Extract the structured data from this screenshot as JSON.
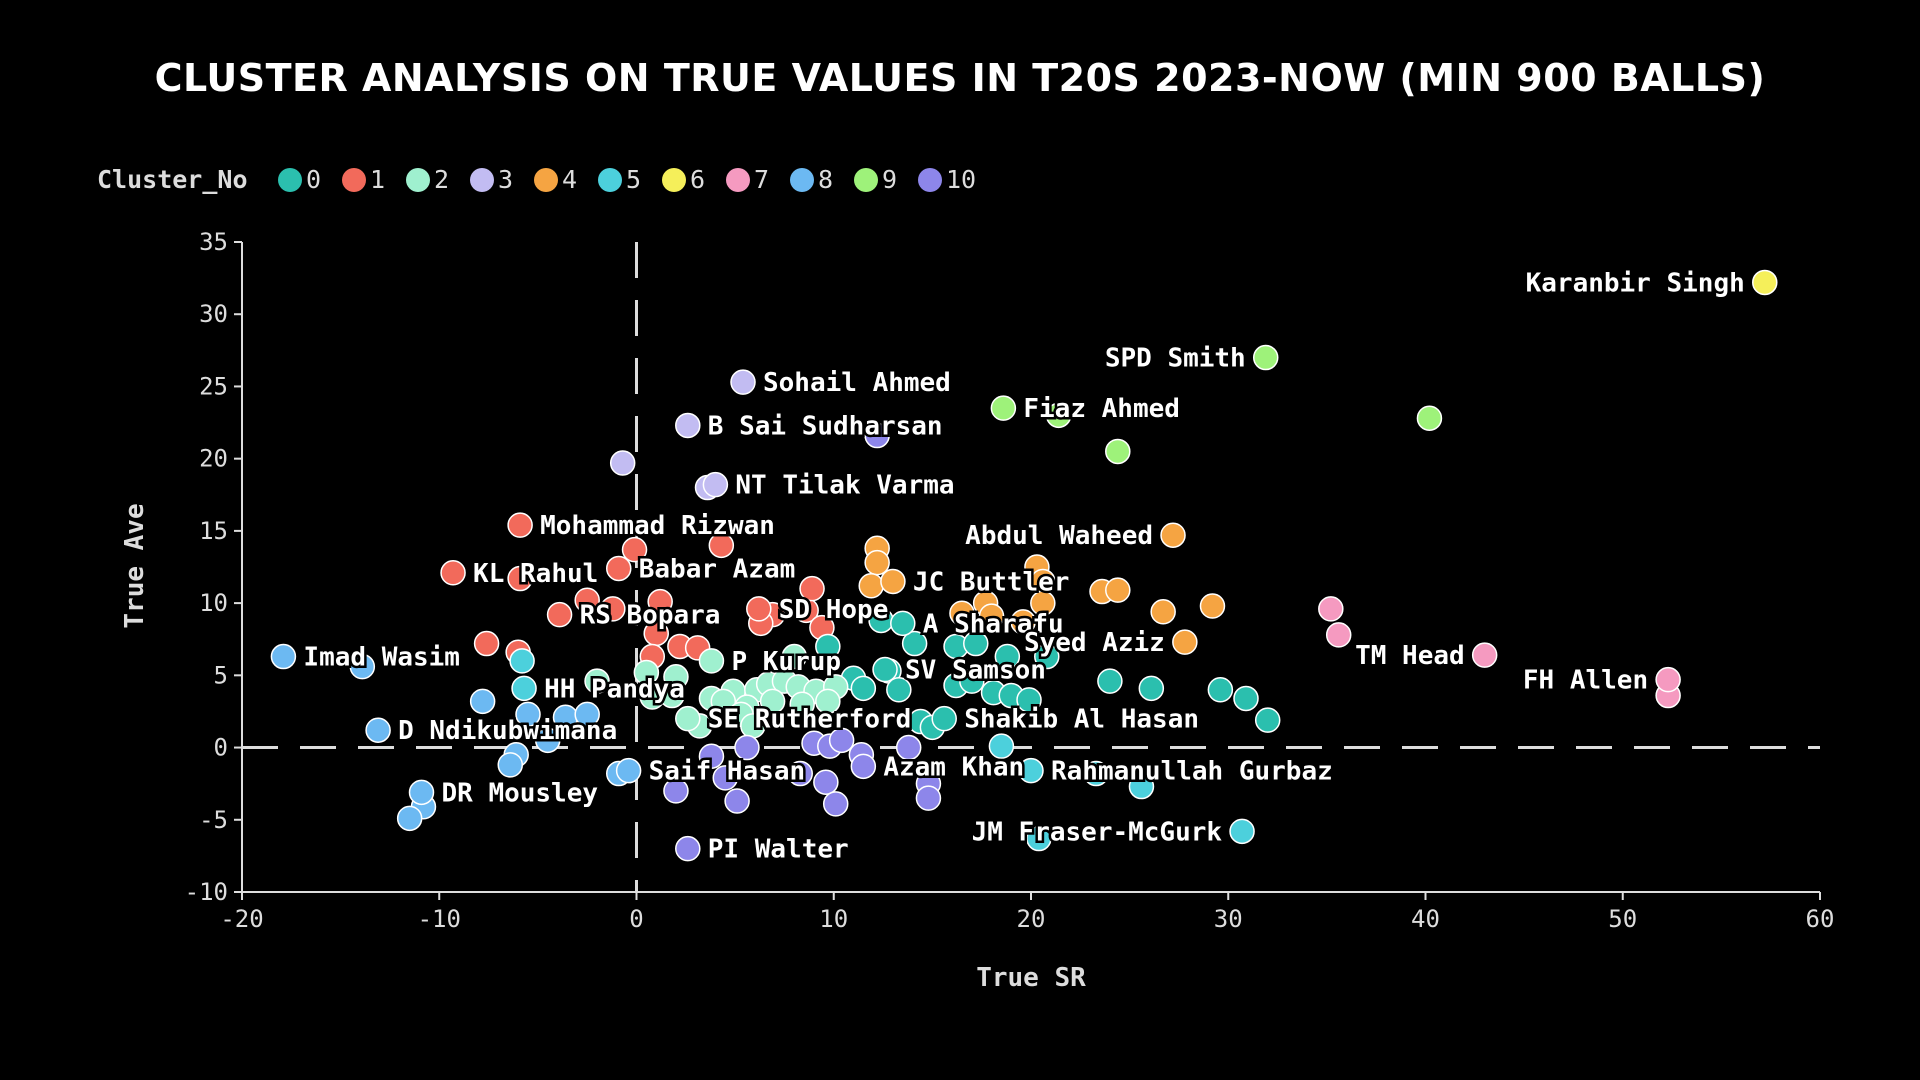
{
  "chart_data": {
    "type": "scatter",
    "title": "CLUSTER ANALYSIS ON TRUE VALUES IN T20S 2023-NOW (MIN 900 BALLS)",
    "xlabel": "True SR",
    "ylabel": "True Ave",
    "xlim": [
      -20,
      60
    ],
    "ylim": [
      -10,
      35
    ],
    "xticks": [
      -20,
      -10,
      0,
      10,
      20,
      30,
      40,
      50,
      60
    ],
    "yticks": [
      -10,
      -5,
      0,
      5,
      10,
      15,
      20,
      25,
      30,
      35
    ],
    "reference_lines": {
      "x": 0,
      "y": 0,
      "style": "dashed"
    },
    "legend": {
      "title": "Cluster_No",
      "placement": "top-left",
      "entries": [
        {
          "label": "0",
          "color": "#2bbfae"
        },
        {
          "label": "1",
          "color": "#f26a5b"
        },
        {
          "label": "2",
          "color": "#9ff0cf"
        },
        {
          "label": "3",
          "color": "#c2bcf2"
        },
        {
          "label": "4",
          "color": "#f5a442"
        },
        {
          "label": "5",
          "color": "#4cd0dc"
        },
        {
          "label": "6",
          "color": "#f5ef5a"
        },
        {
          "label": "7",
          "color": "#f59ac0"
        },
        {
          "label": "8",
          "color": "#6cb9f2"
        },
        {
          "label": "9",
          "color": "#9ef27a"
        },
        {
          "label": "10",
          "color": "#8d86ea"
        }
      ]
    },
    "labeled_points": [
      {
        "name": "Karanbir Singh",
        "x": 57.2,
        "y": 32.2,
        "cluster": "6",
        "label_side": "left"
      },
      {
        "name": "SPD Smith",
        "x": 31.9,
        "y": 27.0,
        "cluster": "9",
        "label_side": "left"
      },
      {
        "name": "Fiaz Ahmed",
        "x": 18.6,
        "y": 23.5,
        "cluster": "9",
        "label_side": "right"
      },
      {
        "name": "Sohail Ahmed",
        "x": 5.4,
        "y": 25.3,
        "cluster": "3",
        "label_side": "right"
      },
      {
        "name": "B Sai Sudharsan",
        "x": 2.6,
        "y": 22.3,
        "cluster": "3",
        "label_side": "right"
      },
      {
        "name": "NT Tilak Varma",
        "x": 4.0,
        "y": 18.2,
        "cluster": "3",
        "label_side": "right"
      },
      {
        "name": "Mohammad Rizwan",
        "x": -5.9,
        "y": 15.4,
        "cluster": "1",
        "label_side": "right"
      },
      {
        "name": "Abdul Waheed",
        "x": 27.2,
        "y": 14.7,
        "cluster": "4",
        "label_side": "left"
      },
      {
        "name": "KL Rahul",
        "x": -9.3,
        "y": 12.1,
        "cluster": "1",
        "label_side": "right"
      },
      {
        "name": "Babar Azam",
        "x": -0.9,
        "y": 12.4,
        "cluster": "1",
        "label_side": "right"
      },
      {
        "name": "JC Buttler",
        "x": 13.0,
        "y": 11.5,
        "cluster": "4",
        "label_side": "right"
      },
      {
        "name": "RS Bopara",
        "x": -3.9,
        "y": 9.2,
        "cluster": "1",
        "label_side": "right"
      },
      {
        "name": "SD Hope",
        "x": 6.2,
        "y": 9.6,
        "cluster": "1",
        "label_side": "right"
      },
      {
        "name": "A Sharafu",
        "x": 13.5,
        "y": 8.6,
        "cluster": "0",
        "label_side": "right"
      },
      {
        "name": "Syed Aziz",
        "x": 27.8,
        "y": 7.3,
        "cluster": "4",
        "label_side": "left"
      },
      {
        "name": "TM Head",
        "x": 43.0,
        "y": 6.4,
        "cluster": "7",
        "label_side": "left"
      },
      {
        "name": "FH Allen",
        "x": 52.3,
        "y": 4.7,
        "cluster": "7",
        "label_side": "left"
      },
      {
        "name": "Imad Wasim",
        "x": -17.9,
        "y": 6.3,
        "cluster": "8",
        "label_side": "right"
      },
      {
        "name": "P Kurup",
        "x": 3.8,
        "y": 6.0,
        "cluster": "2",
        "label_side": "right"
      },
      {
        "name": "SV Samson",
        "x": 12.6,
        "y": 5.4,
        "cluster": "0",
        "label_side": "right"
      },
      {
        "name": "HH Pandya",
        "x": -5.7,
        "y": 4.1,
        "cluster": "5",
        "label_side": "right"
      },
      {
        "name": "SE Rutherford",
        "x": 2.6,
        "y": 2.0,
        "cluster": "2",
        "label_side": "right"
      },
      {
        "name": "Shakib Al Hasan",
        "x": 15.6,
        "y": 2.0,
        "cluster": "0",
        "label_side": "right"
      },
      {
        "name": "D Ndikubwimana",
        "x": -13.1,
        "y": 1.2,
        "cluster": "8",
        "label_side": "right"
      },
      {
        "name": "Saif Hasan",
        "x": -0.4,
        "y": -1.6,
        "cluster": "8",
        "label_side": "right"
      },
      {
        "name": "Azam Khan",
        "x": 11.5,
        "y": -1.3,
        "cluster": "10",
        "label_side": "right"
      },
      {
        "name": "Rahmanullah Gurbaz",
        "x": 20.0,
        "y": -1.6,
        "cluster": "5",
        "label_side": "right"
      },
      {
        "name": "DR Mousley",
        "x": -10.9,
        "y": -3.1,
        "cluster": "8",
        "label_side": "right"
      },
      {
        "name": "JM Fraser-McGurk",
        "x": 30.7,
        "y": -5.8,
        "cluster": "5",
        "label_side": "left"
      },
      {
        "name": "PI Walter",
        "x": 2.6,
        "y": -7.0,
        "cluster": "10",
        "label_side": "right"
      }
    ],
    "unlabeled_points": [
      {
        "x": 40.2,
        "y": 22.8,
        "cluster": "9"
      },
      {
        "x": 21.4,
        "y": 23.0,
        "cluster": "9"
      },
      {
        "x": 24.4,
        "y": 20.5,
        "cluster": "9"
      },
      {
        "x": 12.2,
        "y": 21.6,
        "cluster": "10"
      },
      {
        "x": -0.7,
        "y": 19.7,
        "cluster": "3"
      },
      {
        "x": 3.6,
        "y": 18.0,
        "cluster": "3"
      },
      {
        "x": -0.1,
        "y": 13.7,
        "cluster": "1"
      },
      {
        "x": 4.3,
        "y": 14.0,
        "cluster": "1"
      },
      {
        "x": -5.9,
        "y": 11.7,
        "cluster": "1"
      },
      {
        "x": -2.5,
        "y": 10.2,
        "cluster": "1"
      },
      {
        "x": -1.2,
        "y": 9.6,
        "cluster": "1"
      },
      {
        "x": 1.2,
        "y": 10.1,
        "cluster": "1"
      },
      {
        "x": 6.9,
        "y": 9.2,
        "cluster": "1"
      },
      {
        "x": 8.6,
        "y": 9.5,
        "cluster": "1"
      },
      {
        "x": 8.9,
        "y": 11.0,
        "cluster": "1"
      },
      {
        "x": 9.4,
        "y": 8.3,
        "cluster": "1"
      },
      {
        "x": 6.3,
        "y": 8.6,
        "cluster": "1"
      },
      {
        "x": 1.0,
        "y": 7.9,
        "cluster": "1"
      },
      {
        "x": 2.2,
        "y": 7.0,
        "cluster": "1"
      },
      {
        "x": 3.1,
        "y": 6.9,
        "cluster": "1"
      },
      {
        "x": 0.8,
        "y": 6.3,
        "cluster": "1"
      },
      {
        "x": -7.6,
        "y": 7.2,
        "cluster": "1"
      },
      {
        "x": -6.0,
        "y": 6.6,
        "cluster": "1"
      },
      {
        "x": 12.2,
        "y": 13.8,
        "cluster": "4"
      },
      {
        "x": 12.2,
        "y": 12.8,
        "cluster": "4"
      },
      {
        "x": 11.9,
        "y": 11.2,
        "cluster": "4"
      },
      {
        "x": 20.3,
        "y": 12.5,
        "cluster": "4"
      },
      {
        "x": 20.6,
        "y": 11.5,
        "cluster": "4"
      },
      {
        "x": 23.6,
        "y": 10.8,
        "cluster": "4"
      },
      {
        "x": 24.4,
        "y": 10.9,
        "cluster": "4"
      },
      {
        "x": 17.7,
        "y": 10.0,
        "cluster": "4"
      },
      {
        "x": 20.6,
        "y": 10.0,
        "cluster": "4"
      },
      {
        "x": 16.5,
        "y": 9.3,
        "cluster": "4"
      },
      {
        "x": 18.0,
        "y": 9.1,
        "cluster": "4"
      },
      {
        "x": 19.6,
        "y": 8.7,
        "cluster": "4"
      },
      {
        "x": 26.7,
        "y": 9.4,
        "cluster": "4"
      },
      {
        "x": 29.2,
        "y": 9.8,
        "cluster": "4"
      },
      {
        "x": 35.2,
        "y": 9.6,
        "cluster": "7"
      },
      {
        "x": 35.6,
        "y": 7.8,
        "cluster": "7"
      },
      {
        "x": 52.3,
        "y": 3.6,
        "cluster": "7"
      },
      {
        "x": 12.4,
        "y": 8.8,
        "cluster": "0"
      },
      {
        "x": 9.7,
        "y": 7.0,
        "cluster": "0"
      },
      {
        "x": 14.1,
        "y": 7.2,
        "cluster": "0"
      },
      {
        "x": 16.2,
        "y": 7.0,
        "cluster": "0"
      },
      {
        "x": 17.2,
        "y": 7.2,
        "cluster": "0"
      },
      {
        "x": 18.8,
        "y": 6.3,
        "cluster": "0"
      },
      {
        "x": 20.8,
        "y": 6.3,
        "cluster": "0"
      },
      {
        "x": 12.8,
        "y": 5.3,
        "cluster": "0"
      },
      {
        "x": 11.0,
        "y": 4.8,
        "cluster": "0"
      },
      {
        "x": 11.5,
        "y": 4.1,
        "cluster": "0"
      },
      {
        "x": 13.3,
        "y": 4.0,
        "cluster": "0"
      },
      {
        "x": 16.2,
        "y": 4.3,
        "cluster": "0"
      },
      {
        "x": 17.0,
        "y": 4.6,
        "cluster": "0"
      },
      {
        "x": 18.1,
        "y": 3.8,
        "cluster": "0"
      },
      {
        "x": 19.0,
        "y": 3.6,
        "cluster": "0"
      },
      {
        "x": 19.9,
        "y": 3.3,
        "cluster": "0"
      },
      {
        "x": 24.0,
        "y": 4.6,
        "cluster": "0"
      },
      {
        "x": 26.1,
        "y": 4.1,
        "cluster": "0"
      },
      {
        "x": 29.6,
        "y": 4.0,
        "cluster": "0"
      },
      {
        "x": 30.9,
        "y": 3.4,
        "cluster": "0"
      },
      {
        "x": 32.0,
        "y": 1.9,
        "cluster": "0"
      },
      {
        "x": 14.4,
        "y": 1.8,
        "cluster": "0"
      },
      {
        "x": 15.0,
        "y": 1.4,
        "cluster": "0"
      },
      {
        "x": 0.5,
        "y": 5.2,
        "cluster": "2"
      },
      {
        "x": 2.0,
        "y": 4.9,
        "cluster": "2"
      },
      {
        "x": -2.0,
        "y": 4.6,
        "cluster": "2"
      },
      {
        "x": 0.8,
        "y": 3.5,
        "cluster": "2"
      },
      {
        "x": 1.8,
        "y": 3.6,
        "cluster": "2"
      },
      {
        "x": 3.8,
        "y": 3.4,
        "cluster": "2"
      },
      {
        "x": 4.9,
        "y": 3.9,
        "cluster": "2"
      },
      {
        "x": 6.1,
        "y": 4.0,
        "cluster": "2"
      },
      {
        "x": 6.7,
        "y": 4.4,
        "cluster": "2"
      },
      {
        "x": 7.5,
        "y": 4.6,
        "cluster": "2"
      },
      {
        "x": 8.2,
        "y": 4.2,
        "cluster": "2"
      },
      {
        "x": 9.1,
        "y": 3.9,
        "cluster": "2"
      },
      {
        "x": 10.1,
        "y": 4.2,
        "cluster": "2"
      },
      {
        "x": 4.4,
        "y": 3.2,
        "cluster": "2"
      },
      {
        "x": 5.6,
        "y": 2.8,
        "cluster": "2"
      },
      {
        "x": 6.9,
        "y": 3.2,
        "cluster": "2"
      },
      {
        "x": 8.4,
        "y": 3.0,
        "cluster": "2"
      },
      {
        "x": 9.7,
        "y": 3.2,
        "cluster": "2"
      },
      {
        "x": 5.3,
        "y": 2.3,
        "cluster": "2"
      },
      {
        "x": 3.2,
        "y": 1.5,
        "cluster": "2"
      },
      {
        "x": 5.9,
        "y": 1.5,
        "cluster": "2"
      },
      {
        "x": 8.0,
        "y": 6.3,
        "cluster": "2"
      },
      {
        "x": -5.8,
        "y": 6.0,
        "cluster": "5"
      },
      {
        "x": -13.9,
        "y": 5.6,
        "cluster": "8"
      },
      {
        "x": -7.8,
        "y": 3.2,
        "cluster": "8"
      },
      {
        "x": -5.5,
        "y": 2.3,
        "cluster": "8"
      },
      {
        "x": -3.6,
        "y": 2.1,
        "cluster": "8"
      },
      {
        "x": -2.5,
        "y": 2.3,
        "cluster": "8"
      },
      {
        "x": -4.5,
        "y": 0.5,
        "cluster": "8"
      },
      {
        "x": -6.1,
        "y": -0.5,
        "cluster": "8"
      },
      {
        "x": -6.4,
        "y": -1.2,
        "cluster": "8"
      },
      {
        "x": -0.9,
        "y": -1.8,
        "cluster": "8"
      },
      {
        "x": -10.8,
        "y": -4.1,
        "cluster": "8"
      },
      {
        "x": -11.5,
        "y": -4.9,
        "cluster": "8"
      },
      {
        "x": 5.6,
        "y": 0.0,
        "cluster": "10"
      },
      {
        "x": 9.0,
        "y": 0.3,
        "cluster": "10"
      },
      {
        "x": 9.8,
        "y": 0.1,
        "cluster": "10"
      },
      {
        "x": 10.4,
        "y": 0.5,
        "cluster": "10"
      },
      {
        "x": 3.8,
        "y": -0.6,
        "cluster": "10"
      },
      {
        "x": 11.4,
        "y": -0.5,
        "cluster": "10"
      },
      {
        "x": 13.8,
        "y": 0.0,
        "cluster": "10"
      },
      {
        "x": 4.5,
        "y": -2.1,
        "cluster": "10"
      },
      {
        "x": 8.3,
        "y": -1.8,
        "cluster": "10"
      },
      {
        "x": 9.6,
        "y": -2.4,
        "cluster": "10"
      },
      {
        "x": 2.0,
        "y": -3.0,
        "cluster": "10"
      },
      {
        "x": 5.1,
        "y": -3.7,
        "cluster": "10"
      },
      {
        "x": 10.1,
        "y": -3.9,
        "cluster": "10"
      },
      {
        "x": 14.8,
        "y": -2.5,
        "cluster": "10"
      },
      {
        "x": 14.8,
        "y": -3.5,
        "cluster": "10"
      },
      {
        "x": 18.5,
        "y": 0.1,
        "cluster": "5"
      },
      {
        "x": 23.3,
        "y": -1.8,
        "cluster": "5"
      },
      {
        "x": 25.6,
        "y": -2.7,
        "cluster": "5"
      },
      {
        "x": 20.4,
        "y": -6.3,
        "cluster": "5"
      }
    ]
  }
}
